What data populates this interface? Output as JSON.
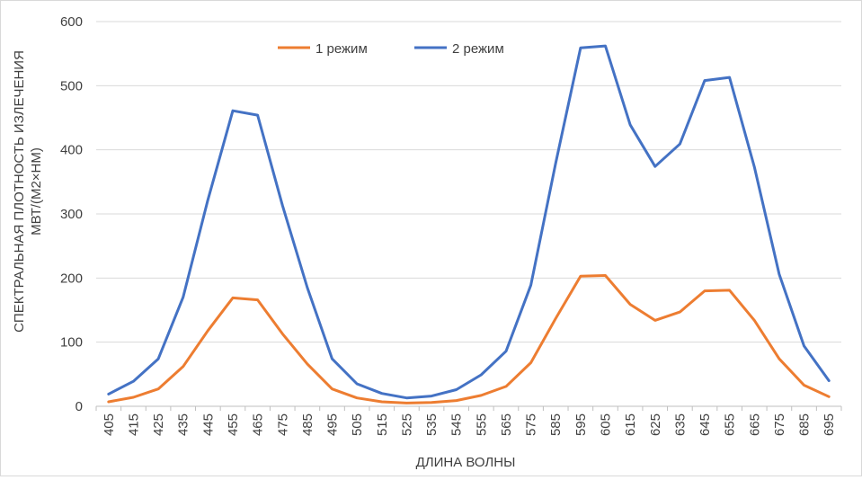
{
  "chart_data": {
    "type": "line",
    "xlabel": "ДЛИНА ВОЛНЫ",
    "ylabel_lines": [
      "СПЕКТРАЛЬНАЯ ПЛОТНОСТЬ ИЗЛЕЧЕНИЯ",
      "МВТ/(М2×НМ)"
    ],
    "categories": [
      "405",
      "415",
      "425",
      "435",
      "445",
      "455",
      "465",
      "475",
      "485",
      "495",
      "505",
      "515",
      "525",
      "535",
      "545",
      "555",
      "565",
      "575",
      "585",
      "595",
      "605",
      "615",
      "625",
      "635",
      "645",
      "655",
      "665",
      "675",
      "685",
      "695"
    ],
    "ylim": [
      0,
      600
    ],
    "yticks": [
      0,
      100,
      200,
      300,
      400,
      500,
      600
    ],
    "grid": "horizontal",
    "legend_position": "top",
    "series": [
      {
        "name": "1 режим",
        "color": "#ed7d31",
        "values": [
          7,
          14,
          27,
          62,
          118,
          169,
          166,
          113,
          66,
          27,
          13,
          7,
          5,
          6,
          9,
          17,
          31,
          68,
          137,
          203,
          204,
          159,
          134,
          147,
          180,
          181,
          134,
          74,
          33,
          15
        ]
      },
      {
        "name": "2 режим",
        "color": "#4472c4",
        "values": [
          19,
          39,
          74,
          170,
          322,
          461,
          454,
          313,
          185,
          74,
          35,
          20,
          13,
          16,
          26,
          49,
          86,
          189,
          379,
          559,
          562,
          439,
          374,
          409,
          508,
          513,
          373,
          206,
          94,
          40
        ]
      }
    ]
  }
}
